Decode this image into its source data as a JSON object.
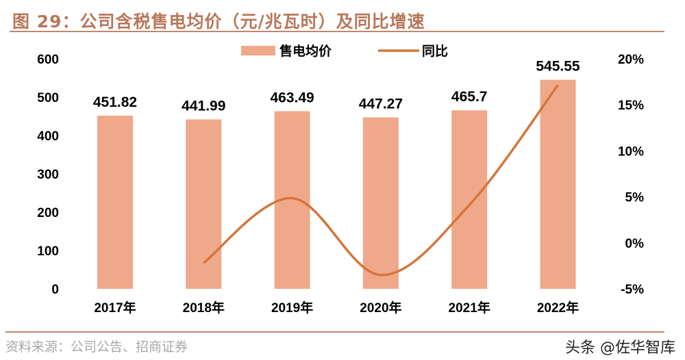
{
  "title": "图 29：公司含税售电均价（元/兆瓦时）及同比增速",
  "source": "资料来源：公司公告、招商证券",
  "watermark": "头条 @佐华智库",
  "chart_data": {
    "type": "bar+line",
    "categories": [
      "2017年",
      "2018年",
      "2019年",
      "2020年",
      "2021年",
      "2022年"
    ],
    "series": [
      {
        "name": "售电均价",
        "type": "bar",
        "axis": "left",
        "color": "#f0a88a",
        "values": [
          451.82,
          441.99,
          463.49,
          447.27,
          465.7,
          545.55
        ],
        "labels": [
          "451.82",
          "441.99",
          "463.49",
          "447.27",
          "465.7",
          "545.55"
        ]
      },
      {
        "name": "同比",
        "type": "line",
        "axis": "right",
        "color": "#d4763a",
        "values": [
          null,
          -2.18,
          4.86,
          -3.5,
          4.12,
          17.15
        ]
      }
    ],
    "left_axis": {
      "min": 0,
      "max": 600,
      "ticks": [
        "0",
        "100",
        "200",
        "300",
        "400",
        "500",
        "600"
      ]
    },
    "right_axis": {
      "min": -5,
      "max": 20,
      "ticks": [
        "-5%",
        "0%",
        "5%",
        "10%",
        "15%",
        "20%"
      ]
    },
    "legend": "top-center",
    "grid": false
  }
}
